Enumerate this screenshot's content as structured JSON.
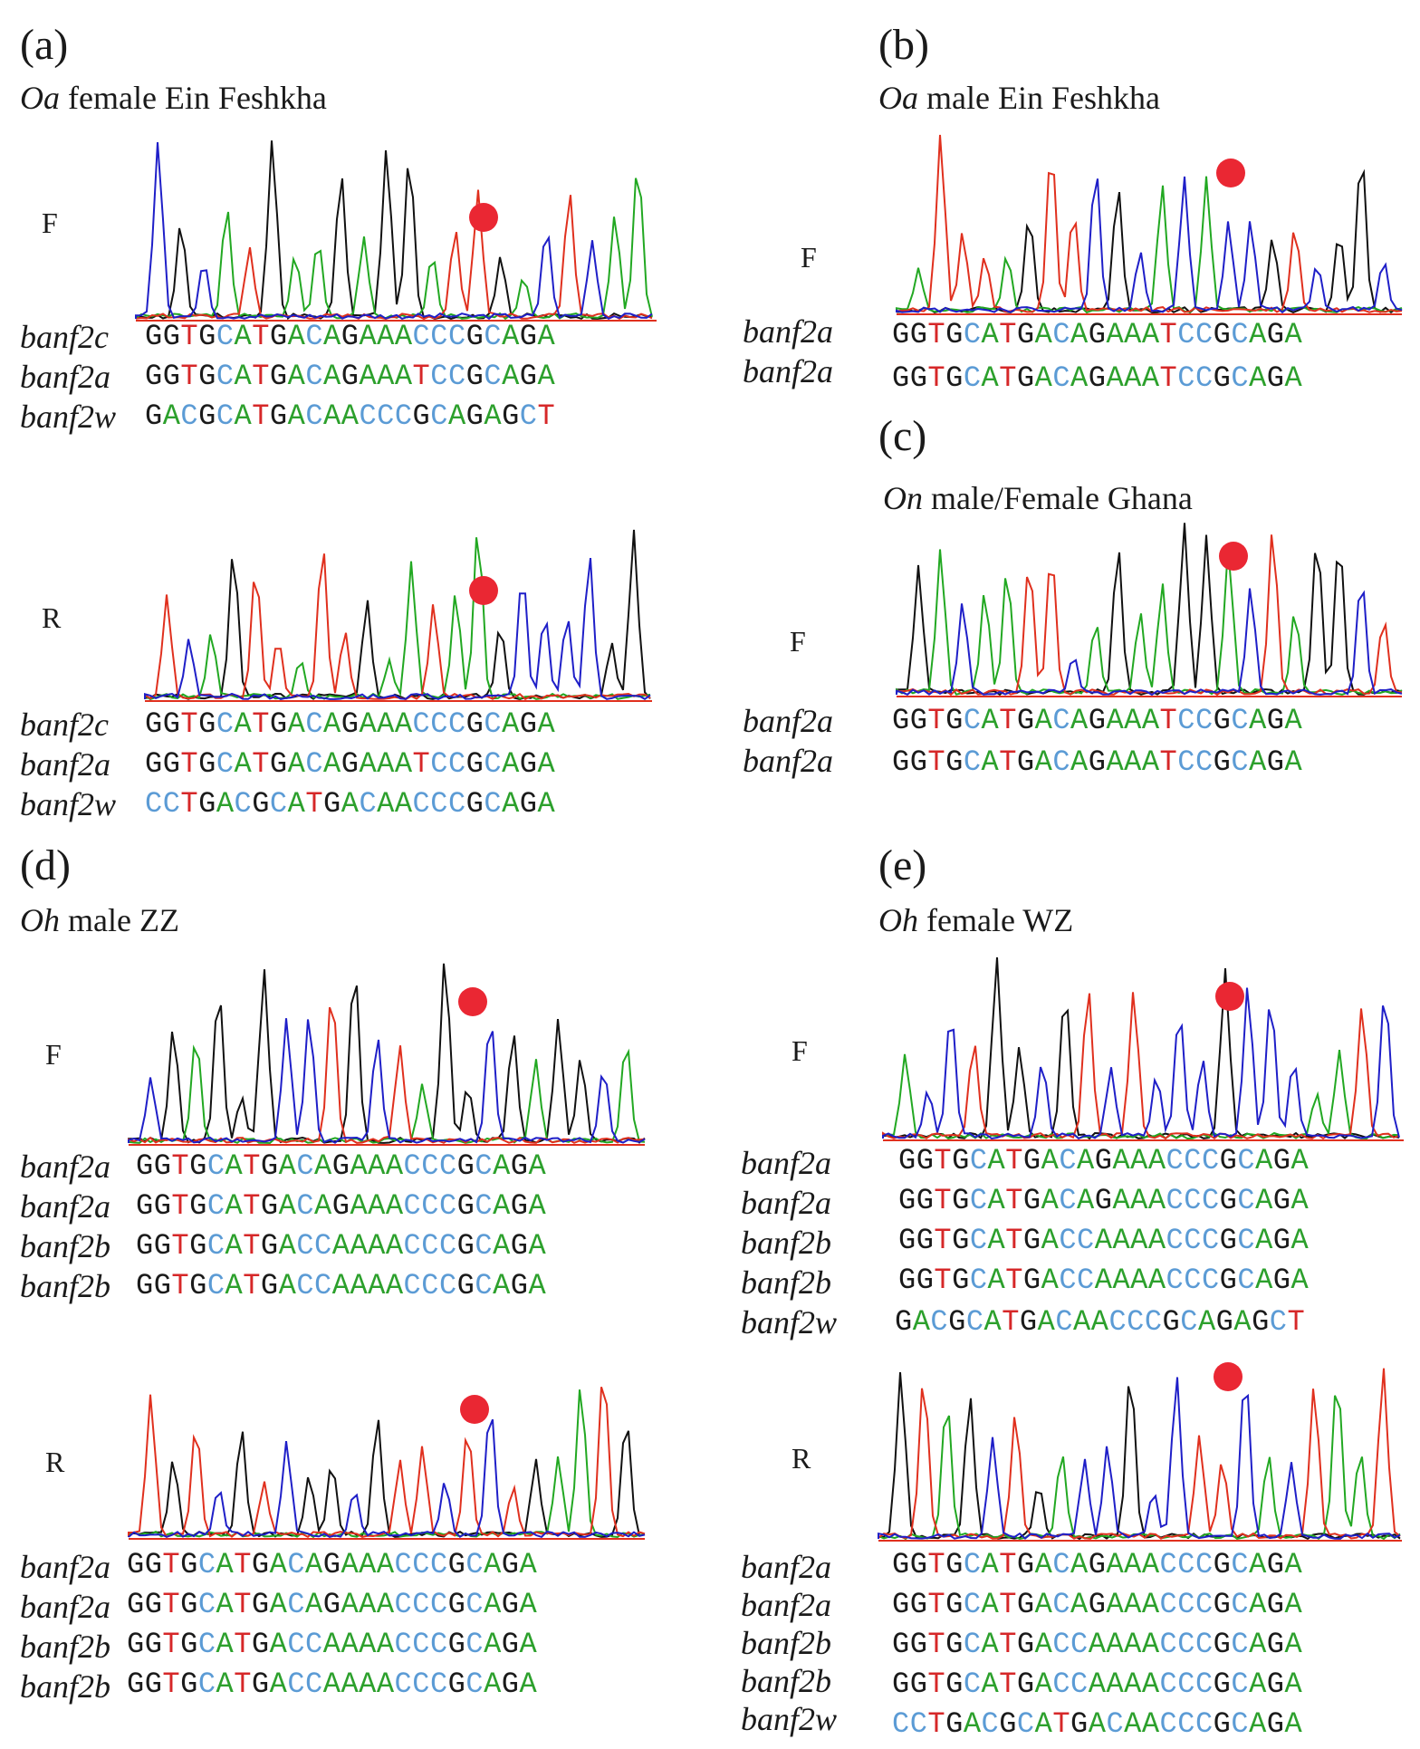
{
  "colors": {
    "G": "#1a1a1a",
    "A": "#2ca02c",
    "T": "#d62728",
    "C": "#5b9bd5",
    "trace_G": "#111111",
    "trace_A": "#22a822",
    "trace_T": "#e0301e",
    "trace_C": "#1f1fc8",
    "marker": "#ea2733"
  },
  "panels": {
    "a": {
      "label": "(a)",
      "species": "Oa",
      "title_rest": " female Ein Feshkha",
      "F": {
        "tag": "F",
        "genes": [
          "banf2c",
          "banf2a",
          "banf2w"
        ],
        "seqs": [
          "GGTGCATGACAGAAACCCGCAGA",
          "GGTGCATGACAGAAATCCGCAGA",
          "GACGCATGACAACCCGCAGAGCT"
        ]
      },
      "R": {
        "tag": "R",
        "genes": [
          "banf2c",
          "banf2a",
          "banf2w"
        ],
        "seqs": [
          "GGTGCATGACAGAAACCCGCAGA",
          "GGTGCATGACAGAAATCCGCAGA",
          "CCTGACGCATGACAACCCGCAGA"
        ]
      }
    },
    "b": {
      "label": "(b)",
      "species": "Oa",
      "title_rest": " male Ein Feshkha",
      "F": {
        "tag": "F",
        "genes": [
          "banf2a",
          "banf2a"
        ],
        "seqs": [
          "GGTGCATGACAGAAATCCGCAGA",
          "GGTGCATGACAGAAATCCGCAGA"
        ]
      }
    },
    "c": {
      "label": "(c)",
      "species": "On",
      "title_rest": " male/Female Ghana",
      "F": {
        "tag": "F",
        "genes": [
          "banf2a",
          "banf2a"
        ],
        "seqs": [
          "GGTGCATGACAGAAATCCGCAGA",
          "GGTGCATGACAGAAATCCGCAGA"
        ]
      }
    },
    "d": {
      "label": "(d)",
      "species": "Oh",
      "title_rest": " male ZZ",
      "F": {
        "tag": "F",
        "genes": [
          "banf2a",
          "banf2a",
          "banf2b",
          "banf2b"
        ],
        "seqs": [
          "GGTGCATGACAGAAACCCGCAGA",
          "GGTGCATGACAGAAACCCGCAGA",
          "GGTGCATGACCAAAACCCGCAGA",
          "GGTGCATGACCAAAACCCGCAGA"
        ]
      },
      "R": {
        "tag": "R",
        "genes": [
          "banf2a",
          "banf2a",
          "banf2b",
          "banf2b"
        ],
        "seqs": [
          "GGTGCATGACAGAAACCCGCAGA",
          "GGTGCATGACAGAAACCCGCAGA",
          "GGTGCATGACCAAAACCCGCAGA",
          "GGTGCATGACCAAAACCCGCAGA"
        ]
      }
    },
    "e": {
      "label": "(e)",
      "species": "Oh",
      "title_rest": " female  WZ",
      "F": {
        "tag": "F",
        "genes": [
          "banf2a",
          "banf2a",
          "banf2b",
          "banf2b",
          "banf2w"
        ],
        "seqs": [
          "GGTGCATGACAGAAACCCGCAGA",
          "GGTGCATGACAGAAACCCGCAGA",
          "GGTGCATGACCAAAACCCGCAGA",
          "GGTGCATGACCAAAACCCGCAGA",
          "GACGCATGACAACCCGCAGAGCT"
        ]
      },
      "R": {
        "tag": "R",
        "genes": [
          "banf2a",
          "banf2a",
          "banf2b",
          "banf2b",
          "banf2w"
        ],
        "seqs": [
          "GGTGCATGACAGAAACCCGCAGA",
          "GGTGCATGACAGAAACCCGCAGA",
          "GGTGCATGACCAAAACCCGCAGA",
          "GGTGCATGACCAAAACCCGCAGA",
          "CCTGACGCATGACAACCCGCAGA"
        ]
      }
    }
  }
}
